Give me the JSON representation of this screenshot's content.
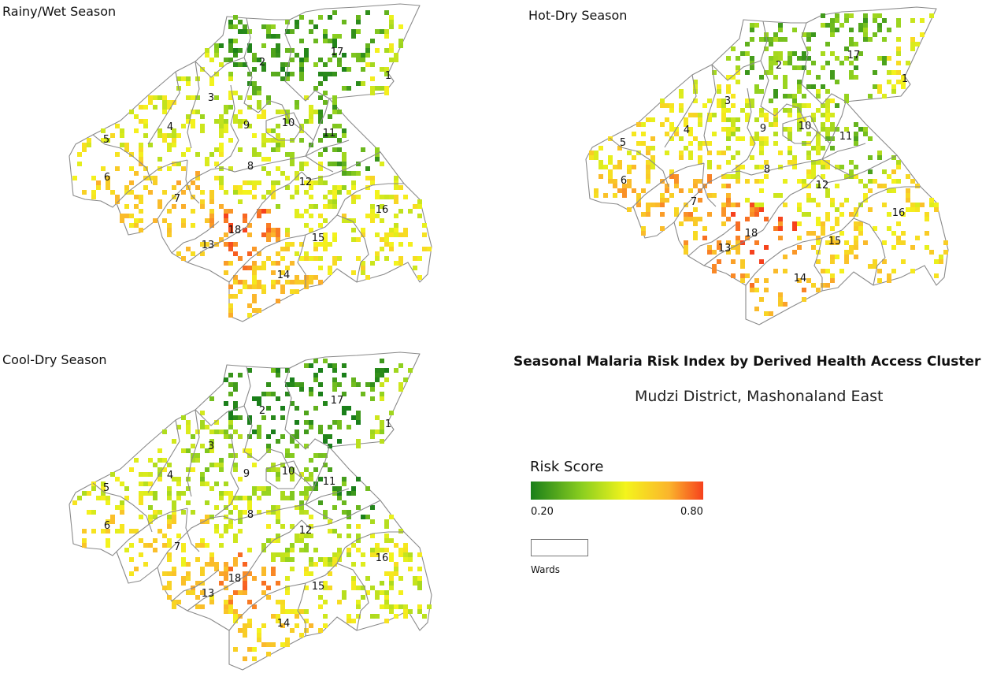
{
  "panels": [
    {
      "id": "rainy",
      "title": "Rainy/Wet Season",
      "shift": 0.0
    },
    {
      "id": "hot",
      "title": "Hot-Dry Season",
      "shift": 0.04
    },
    {
      "id": "cool",
      "title": "Cool-Dry Season",
      "shift": -0.03
    }
  ],
  "ward_labels": [
    "1",
    "2",
    "3",
    "4",
    "5",
    "6",
    "7",
    "8",
    "9",
    "10",
    "11",
    "12",
    "13",
    "14",
    "15",
    "16",
    "17",
    "18"
  ],
  "title": "Seasonal Malaria Risk Index by Derived Health Access Cluster",
  "subtitle": "Mudzi District, Mashonaland East",
  "legend": {
    "title": "Risk Score",
    "min_label": "0.20",
    "max_label": "0.80",
    "min": 0.2,
    "max": 0.8,
    "colors": [
      "#1a7f1a",
      "#8ccf1f",
      "#f4f41c",
      "#fbb52c",
      "#f6411d"
    ],
    "wards_label": "Wards"
  },
  "ward_risk": {
    "1": 0.45,
    "2": 0.28,
    "3": 0.42,
    "4": 0.48,
    "5": 0.5,
    "6": 0.58,
    "7": 0.6,
    "8": 0.47,
    "9": 0.45,
    "10": 0.4,
    "11": 0.3,
    "12": 0.44,
    "13": 0.62,
    "14": 0.6,
    "15": 0.52,
    "16": 0.5,
    "17": 0.28,
    "18": 0.72
  }
}
